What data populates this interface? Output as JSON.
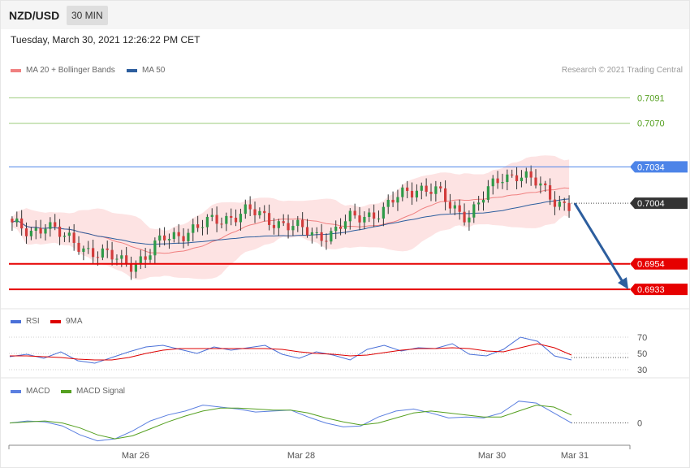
{
  "header": {
    "pair": "NZD/USD",
    "timeframe": "30 MIN"
  },
  "datetime": "Tuesday, March 30, 2021 12:26:22 PM CET",
  "copyright": "Research © 2021 Trading Central",
  "colors": {
    "bollinger": "#f08080",
    "ma50": "#2d5e9e",
    "rsi": "#4a70d8",
    "rsi_ma": "#dd0000",
    "macd": "#5b7fe0",
    "signal": "#55a020",
    "arrow": "#2d5e9e"
  },
  "chart_data": [
    {
      "type": "candlestick",
      "title": "NZD/USD",
      "x_ticks": [
        "Mar 26",
        "Mar 28",
        "Mar 30",
        "Mar 31"
      ],
      "y_range": [
        0.6925,
        0.71
      ],
      "legend": [
        "MA 20 + Bollinger Bands",
        "MA 50"
      ],
      "levels": [
        {
          "value": 0.7091,
          "label": "0.7091",
          "kind": "target"
        },
        {
          "value": 0.707,
          "label": "0.7070",
          "kind": "target"
        },
        {
          "value": 0.7034,
          "label": "0.7034",
          "kind": "resistance"
        },
        {
          "value": 0.7004,
          "label": "0.7004",
          "kind": "last-price"
        },
        {
          "value": 0.6954,
          "label": "0.6954",
          "kind": "support"
        },
        {
          "value": 0.6933,
          "label": "0.6933",
          "kind": "support"
        }
      ],
      "close_path": [
        0.6985,
        0.698,
        0.6988,
        0.6975,
        0.697,
        0.6963,
        0.6958,
        0.6955,
        0.696,
        0.6975,
        0.698,
        0.6983,
        0.699,
        0.6994,
        0.6997,
        0.6992,
        0.6988,
        0.6982,
        0.6978,
        0.698,
        0.699,
        0.6995,
        0.6998,
        0.701,
        0.7018,
        0.7015,
        0.7,
        0.6995,
        0.701,
        0.7025,
        0.703,
        0.702,
        0.7008,
        0.7003
      ]
    },
    {
      "type": "line",
      "name": "RSI panel",
      "legend": [
        "RSI",
        "9MA"
      ],
      "y_ticks": [
        70,
        50,
        30
      ],
      "y_range": [
        25,
        75
      ],
      "series": [
        {
          "name": "RSI",
          "values": [
            46,
            49,
            44,
            52,
            41,
            38,
            45,
            52,
            58,
            60,
            55,
            50,
            58,
            54,
            57,
            60,
            49,
            44,
            52,
            48,
            42,
            55,
            60,
            53,
            57,
            56,
            62,
            49,
            47,
            55,
            70,
            65,
            47,
            42
          ]
        },
        {
          "name": "9MA",
          "values": [
            47,
            47,
            46,
            45,
            43,
            42,
            42,
            45,
            50,
            54,
            56,
            56,
            56,
            56,
            56,
            56,
            55,
            52,
            50,
            49,
            47,
            48,
            51,
            54,
            56,
            56,
            57,
            56,
            53,
            52,
            57,
            62,
            57,
            48
          ]
        }
      ]
    },
    {
      "type": "line",
      "name": "MACD panel",
      "legend": [
        "MACD",
        "MACD Signal"
      ],
      "y_ticks": [
        0
      ],
      "y_range": [
        -0.002,
        0.0025
      ],
      "series": [
        {
          "name": "MACD",
          "values": [
            0.0,
            0.0002,
            0.0001,
            -0.0003,
            -0.0012,
            -0.0018,
            -0.0016,
            -0.0008,
            0.0002,
            0.0008,
            0.0012,
            0.0018,
            0.0016,
            0.0014,
            0.0011,
            0.0012,
            0.0013,
            0.0006,
            0.0,
            -0.0004,
            -0.0003,
            0.0006,
            0.0012,
            0.0014,
            0.001,
            0.0005,
            0.0006,
            0.0005,
            0.001,
            0.0022,
            0.002,
            0.001,
            0.0
          ]
        },
        {
          "name": "MACD Signal",
          "values": [
            0.0,
            0.0001,
            0.0002,
            0.0,
            -0.0005,
            -0.0012,
            -0.0016,
            -0.0013,
            -0.0006,
            0.0001,
            0.0007,
            0.0012,
            0.0015,
            0.0015,
            0.0014,
            0.0013,
            0.0013,
            0.001,
            0.0005,
            0.0001,
            -0.0002,
            0.0,
            0.0005,
            0.001,
            0.0012,
            0.001,
            0.0008,
            0.0006,
            0.0006,
            0.0012,
            0.0018,
            0.0016,
            0.0008
          ]
        }
      ]
    }
  ]
}
